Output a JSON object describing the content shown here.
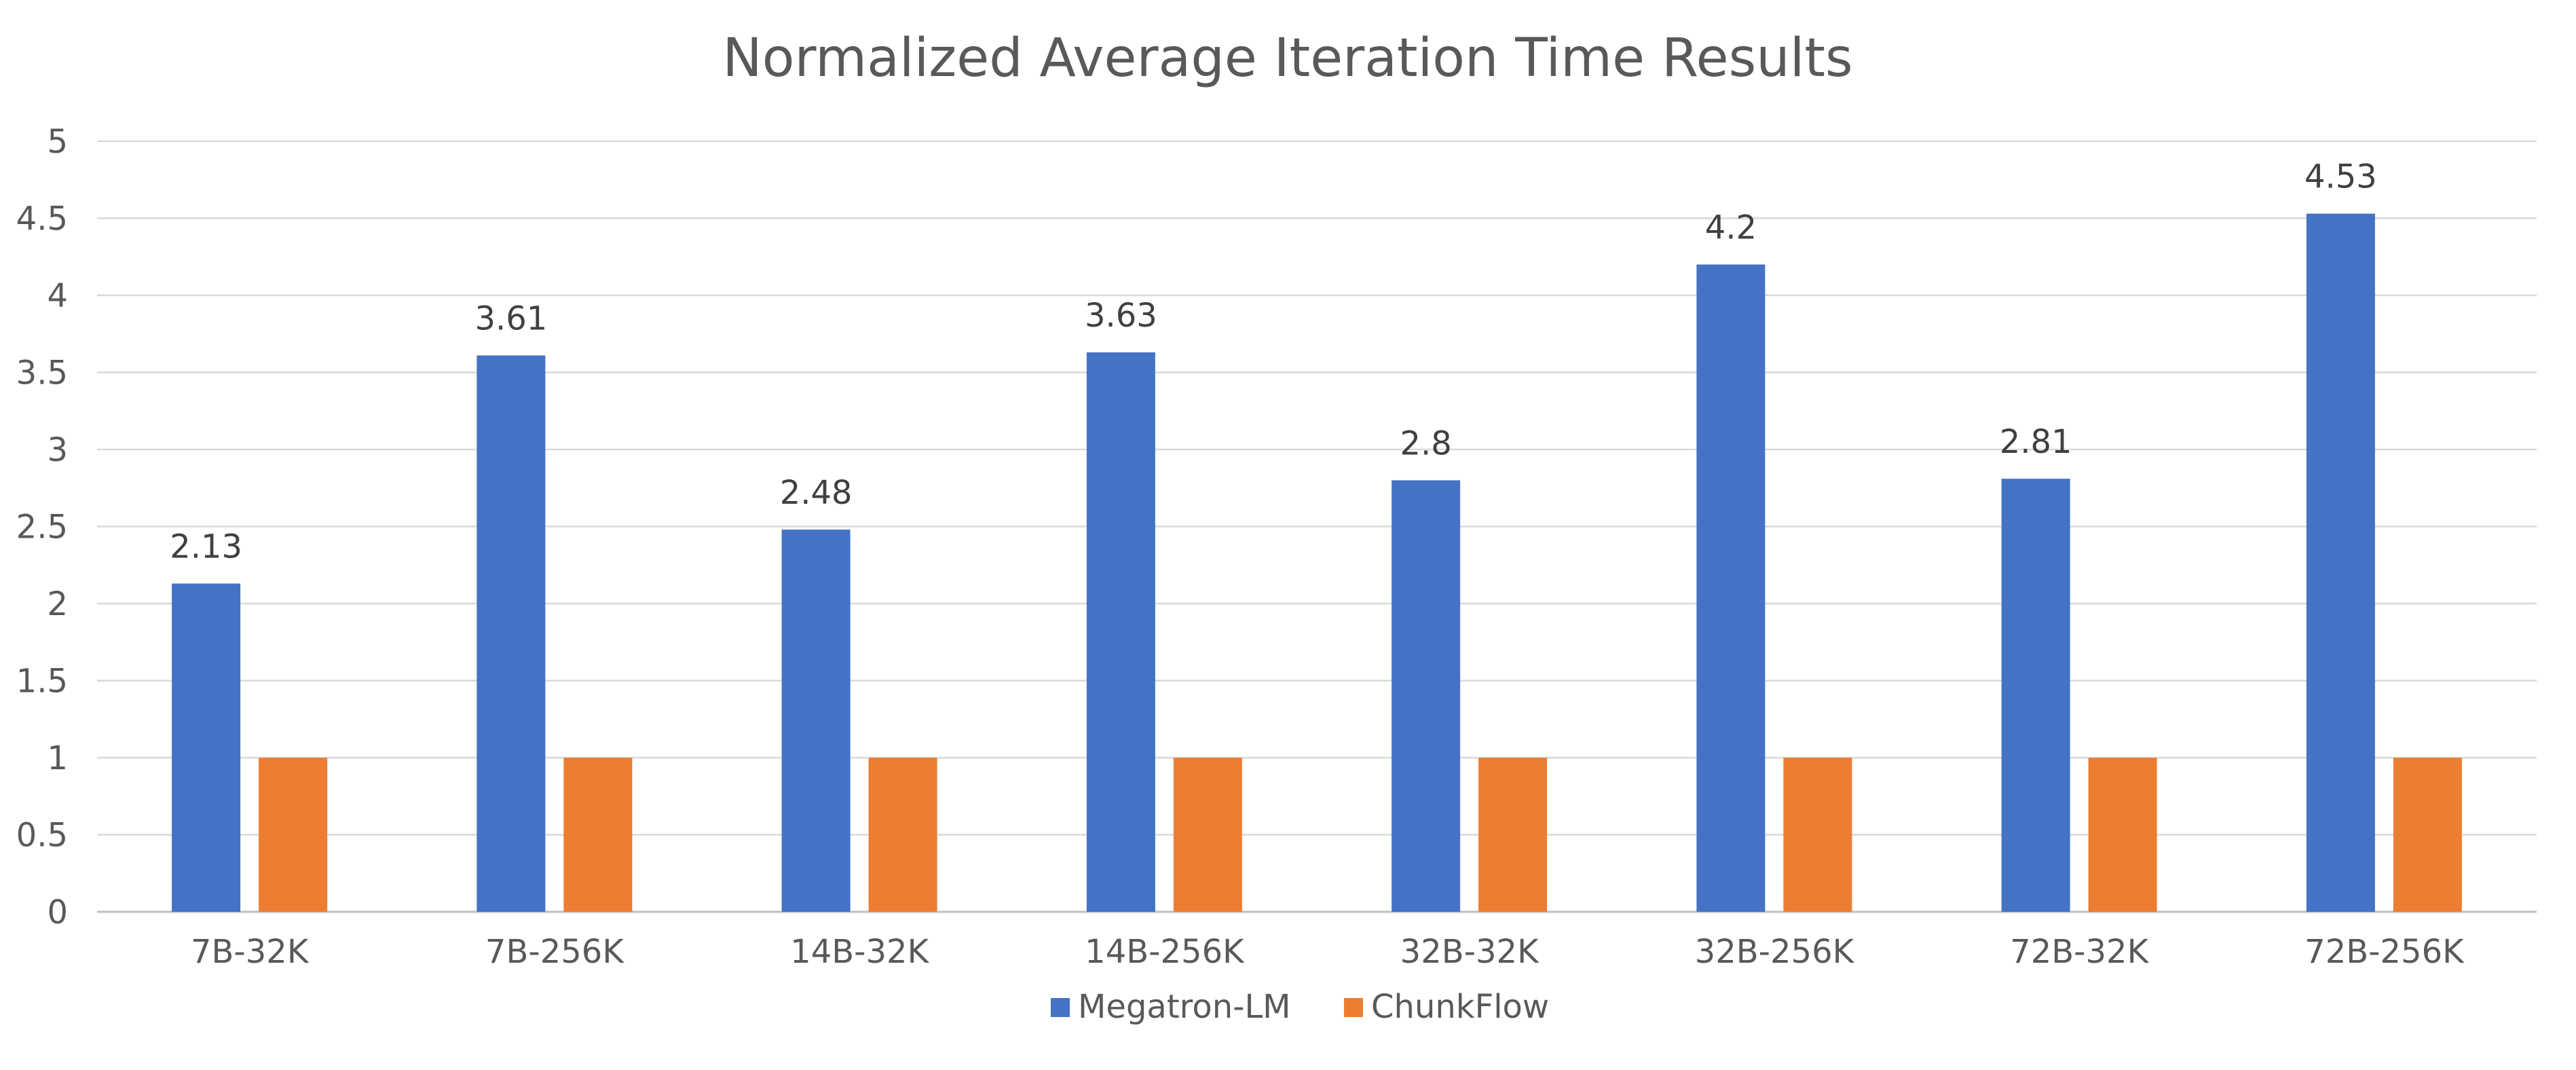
{
  "chart_data": {
    "type": "bar",
    "title": "Normalized Average Iteration Time Results",
    "xlabel": "",
    "ylabel": "",
    "categories": [
      "7B-32K",
      "7B-256K",
      "14B-32K",
      "14B-256K",
      "32B-32K",
      "32B-256K",
      "72B-32K",
      "72B-256K"
    ],
    "series": [
      {
        "name": "Megatron-LM",
        "color": "#4472C4",
        "values": [
          2.13,
          3.61,
          2.48,
          3.63,
          2.8,
          4.2,
          2.81,
          4.53
        ],
        "data_labels": [
          "2.13",
          "3.61",
          "2.48",
          "3.63",
          "2.8",
          "4.2",
          "2.81",
          "4.53"
        ]
      },
      {
        "name": "ChunkFlow",
        "color": "#ED7D31",
        "values": [
          1,
          1,
          1,
          1,
          1,
          1,
          1,
          1
        ],
        "data_labels": []
      }
    ],
    "ylim": [
      0,
      5
    ],
    "yticks": [
      "0",
      "0.5",
      "1",
      "1.5",
      "2",
      "2.5",
      "3",
      "3.5",
      "4",
      "4.5",
      "5"
    ],
    "grid": true,
    "legend_position": "bottom"
  }
}
